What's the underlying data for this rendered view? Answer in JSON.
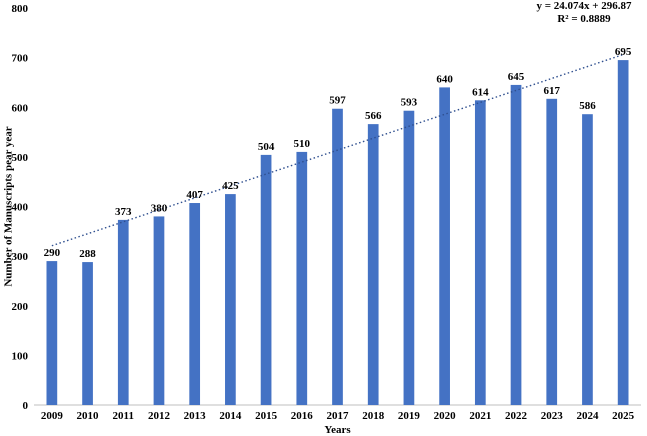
{
  "chart_data": {
    "type": "bar",
    "title": "",
    "xlabel": "Years",
    "ylabel": "Number of  Manuscripts  pear  year",
    "categories": [
      "2009",
      "2010",
      "2011",
      "2012",
      "2013",
      "2014",
      "2015",
      "2016",
      "2017",
      "2018",
      "2019",
      "2020",
      "2021",
      "2022",
      "2023",
      "2024",
      "2025"
    ],
    "values": [
      290,
      288,
      373,
      380,
      407,
      425,
      504,
      510,
      597,
      566,
      593,
      640,
      614,
      645,
      617,
      586,
      695
    ],
    "ylim": [
      0,
      800
    ],
    "yticks": [
      0,
      100,
      200,
      300,
      400,
      500,
      600,
      700,
      800
    ],
    "grid": false,
    "bar_color": "#4472C4",
    "trendline": {
      "type": "linear",
      "slope": 24.074,
      "intercept": 296.87,
      "equation": "y = 24.074x + 296.87",
      "r_squared": "R² = 0.8889",
      "color": "#2F4F8F",
      "style": "dotted"
    }
  }
}
